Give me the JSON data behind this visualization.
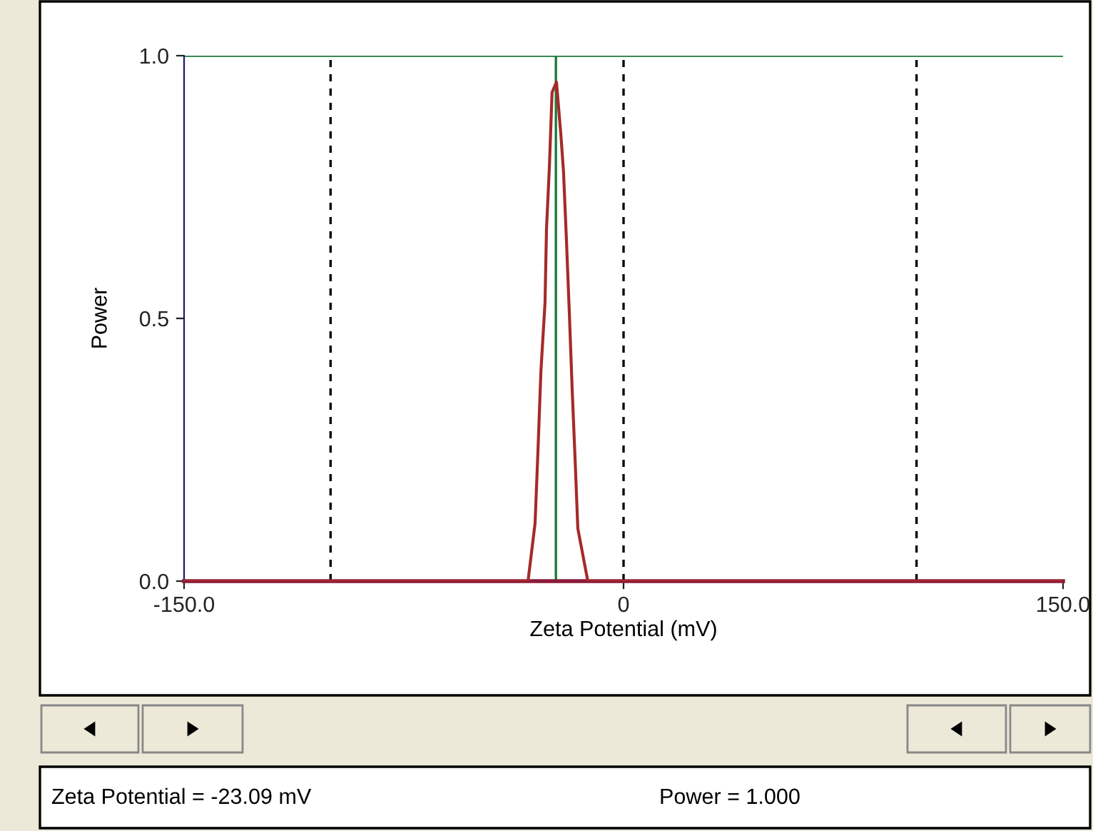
{
  "chart_data": {
    "type": "line",
    "xlabel": "Zeta Potential (mV)",
    "ylabel": "Power",
    "series": [
      {
        "color": "#a52a2a",
        "x": [
          -150,
          -32.6,
          -30.2,
          -29.2,
          -28.2,
          -26.8,
          -26.3,
          -25.3,
          -24.4,
          -22.9,
          -21.4,
          -20.5,
          -19.5,
          -18.5,
          -17.5,
          -16.6,
          -15.6,
          -12.2,
          150
        ],
        "values": [
          0,
          0,
          0.11,
          0.25,
          0.4,
          0.53,
          0.67,
          0.79,
          0.93,
          0.95,
          0.85,
          0.78,
          0.65,
          0.51,
          0.36,
          0.24,
          0.1,
          0,
          0
        ]
      }
    ],
    "xlim": [
      -150,
      150
    ],
    "ylim": [
      0,
      1
    ],
    "xticks": [
      {
        "value": -150,
        "label": "-150.0"
      },
      0,
      {
        "value": 150,
        "label": "150.0"
      }
    ],
    "yticks": [
      {
        "value": 0,
        "label": "0.0"
      },
      0.5,
      {
        "value": 1,
        "label": "1.0"
      }
    ],
    "ref_lines": [
      {
        "axis": "x",
        "value": -100,
        "color": "#000000",
        "line_style": "dashed"
      },
      {
        "axis": "x",
        "value": 0,
        "color": "#000000",
        "line_style": "dashed"
      },
      {
        "axis": "x",
        "value": 100,
        "color": "#000000",
        "line_style": "dashed"
      },
      {
        "axis": "x",
        "value": -23.09,
        "color": "#1a7a3a",
        "line_style": "solid"
      },
      {
        "axis": "y",
        "value": 1.0,
        "color": "#1a7a3a",
        "line_style": "solid"
      }
    ],
    "annotations": [
      "Zeta Potential = -23.09 mV",
      "Power = 1.000"
    ],
    "grid": false,
    "legend": false,
    "marker": "none",
    "line_style": "solid"
  }
}
